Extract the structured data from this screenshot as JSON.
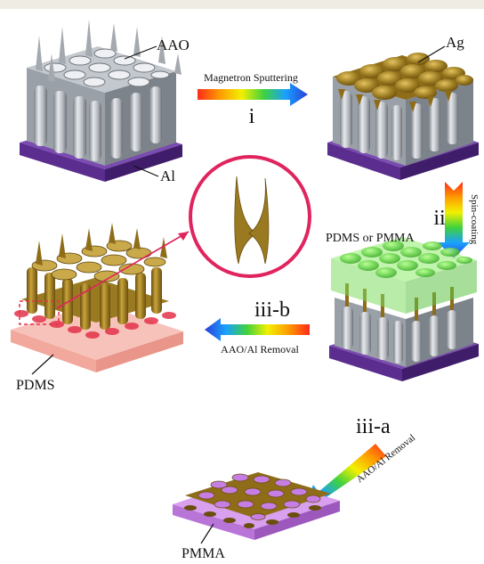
{
  "labels": {
    "aao": "AAO",
    "al": "Al",
    "ag": "Ag",
    "pdms_or_pmma": "PDMS or PMMA",
    "pdms": "PDMS",
    "pmma": "PMMA"
  },
  "steps": {
    "i": {
      "numeral": "i",
      "text": "Magnetron Sputtering"
    },
    "ii": {
      "numeral": "ii",
      "text": "Spin-coating"
    },
    "iii_a": {
      "numeral": "iii-a",
      "text": "AAO/Al Removal"
    },
    "iii_b": {
      "numeral": "iii-b",
      "text": "AAO/Al Removal"
    }
  },
  "colors": {
    "substrate": "#5b2d8e",
    "aao": "#b4b9c0",
    "silver_gold": "#9a7a20",
    "pdms_green": "#79e35f",
    "pdms_pink": "#f5b0a6",
    "pmma_violet": "#c17be0",
    "highlight_red": "#e3324a",
    "callout_ring": "#e0245e"
  }
}
